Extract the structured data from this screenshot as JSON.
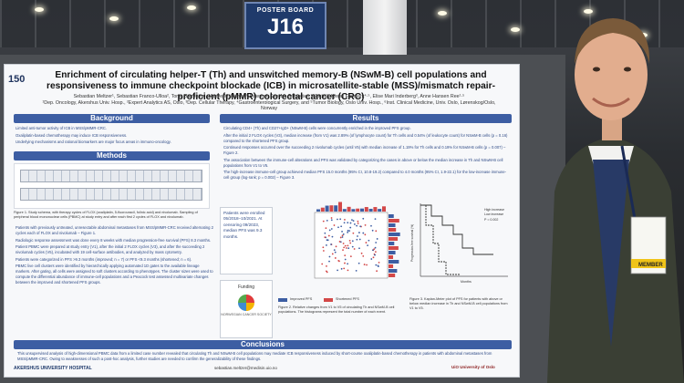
{
  "sign": {
    "line1": "POSTER BOARD",
    "line2": "J16"
  },
  "poster": {
    "number": "150",
    "title": "Enrichment of circulating helper-T (Th) and unswitched memory-B (NSwM-B) cell populations and responsiveness to immune checkpoint blockade (ICB) in microsatellite-stable (MSS)/mismatch repair-proficient (pMMR) colorectal cancer (CRC)",
    "authors": "Sebastian Meltzer¹, Sebastian Franco-Ulloa², Tonje Bjørnetrø¹, Hanne M. Hamre³, Fatemeh Kaveh³, Sébastien Wälchli³, Kjersti Flatmark⁴·⁵, Elise Mari Inderberg³, Anne Hansen Ree¹·⁵",
    "affiliations": "¹Dep. Oncology, Akershus Univ. Hosp., ²Expert Analytics AS, Oslo, ³Dep. Cellular Therapy, ⁴Gastroenterological Surgery, and ⁵Tumor Biology, Oslo Univ. Hosp., ⁶Inst. Clinical Medicine, Univ. Oslo, Lørenskog/Oslo, Norway",
    "sections": {
      "background": "Background",
      "methods": "Methods",
      "results": "Results",
      "conclusions": "Conclusions"
    },
    "background_items": [
      "Limited anti-tumor activity of ICB in MSS/pMMR-CRC.",
      "Oxaliplatin-based chemotherapy may induce ICB responsiveness.",
      "Underlying mechanisms and rational biomarkers are major focus areas in immuno-oncology."
    ],
    "methods_caption": "Figure 1. Study schema, with therapy cycles of FLOX (oxaliplatin, 5-fluorouracil, folinic acid) and nivolumab. Sampling of peripheral blood mononuclear cells (PBMC) at study entry and after each first 2 cycles of FLOX and nivolumab.",
    "methods_items": [
      "Patients with previously untreated, unresectable abdominal metastases from MSS/pMMR-CRC received alternating 2 cycles each of FLOX and nivolumab – Figure 1.",
      "Radiologic response assessment was done every 8 weeks with median progression-free survival (PFS) 8.3 months.",
      "Patient PBMC were prepared at study entry (V1), after the initial 2 FLOX cycles (V3), and after the succeeding 2 nivolumab cycles (V5), incubated with 19 cell-surface antibodies, and analyzed by mass cytometry.",
      "Patients were categorized in PFS >9.3 months (improved; n = 7) or PFS <9.3 months (shortened; n = 6).",
      "PBMC live cell clusters were identified by hierarchically applying automated 1D gates to the available lineage markers. After gating, all cells were assigned to soft clusters according to phenotypes. The cluster sizes were used to compute the differential abundance of immune-cell populations and a Peacock test assessed multivariate changes between the improved and shortened PFS groups."
    ],
    "patients_box": "Patients were enrolled 05/2018–10/2021. At censoring 09/2023, median PFS was 9.3 months.",
    "funding_label": "Funding",
    "funding_org": "NORWEGIAN CANCER SOCIETY",
    "results_items": [
      "Circulating CD4+ (Th) and CD27+IgD+ (NSwM-B) cells were concurrently enriched in the improved PFS group.",
      "After the initial 2 FLOX cycles (V3), median increase (from V1) was 2.89% (of lymphocyte count) for Th cells and 0.54% (of leukocyte count) for NSwM-B cells (p = 0.16) compared to the shortened PFS group.",
      "Continued responses occurred over the succeeding 2 nivolumab cycles (until V5) with median increase of 1.19% for Th cells and 0.19% for NSwM-B cells (p = 0.007) – Figure 2.",
      "The association between the immune-cell alterations and PFS was validated by categorizing the cases in above or below the median increase in Th and NSwM-B cell populations from V1 to V5.",
      "The high-increase immune-cell group achieved median PFS 15.0 months (95% CI, 10.8-19.2) compared to 4.0 months (95% CI, 1.9-22.1) for the low-increase immune-cell group (log-rank; p = 0.002) – Figure 3."
    ],
    "fig2_caption": "Figure 2. Relative changes from V1 to V5 of circulating Th and NSwM-B cell populations. The histograms represent the total number of each event.",
    "fig2_legend": [
      "Improved PFS",
      "Shortened PFS"
    ],
    "fig3_caption": "Figure 3. Kaplan-Meier plot of PFS for patients with above or below median increase in Th and NSwM-B cell populations from V1 to V5.",
    "fig3_legend": [
      "High increase",
      "Low increase"
    ],
    "fig3_p": "P = 0.002",
    "fig3_ylabel": "Progression-free survival (%)",
    "fig3_xlabel": "Months",
    "conclusions_text": "This unsupervised analysis of high-dimensional PBMC data from a limited case number revealed that circulating Th and NSwM-B cell populations may mediate ICB responsiveness induced by short-course oxaliplatin-based chemotherapy in patients with abdominal metastases from MSS/pMMR-CRC. Owing to weaknesses of such a post-hoc analysis, further studies are needed to confirm the generalizability of these findings.",
    "footer_left": "AKERSHUS UNIVERSITY HOSPITAL",
    "footer_email": "sebastian.meltzer@medisin.uio.no",
    "footer_right": "UiO University of Oslo"
  },
  "badge": {
    "text": "MEMBER"
  },
  "colors": {
    "header_blue": "#3d5ea3",
    "title_text": "#111111",
    "body_blue": "#2e4a86",
    "highlight_green": "#1a7a2a",
    "badge_gold": "#f0c419"
  }
}
